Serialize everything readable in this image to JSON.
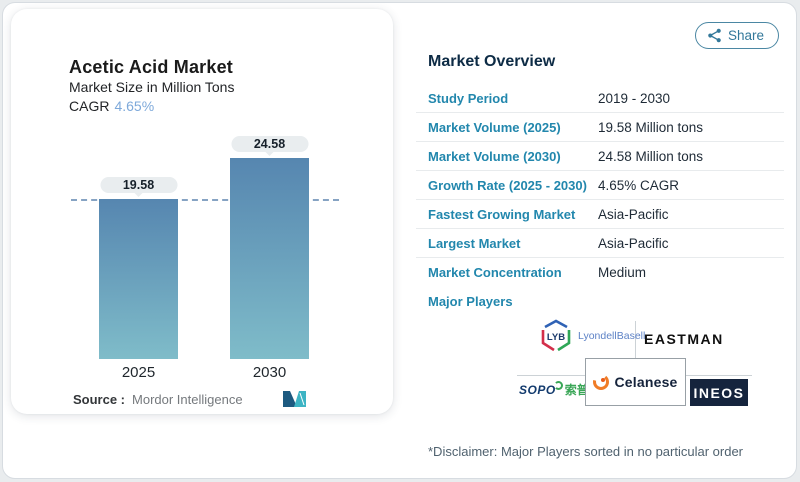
{
  "chart_card": {
    "title": "Acetic Acid Market",
    "subtitle": "Market Size in Million Tons",
    "cagr_label": "CAGR",
    "cagr_value": "4.65%",
    "source_label": "Source :",
    "source_value": "Mordor Intelligence"
  },
  "chart_data": {
    "type": "bar",
    "title": "Acetic Acid Market",
    "subtitle": "Market Size in Million Tons",
    "cagr": "4.65%",
    "categories": [
      "2025",
      "2030"
    ],
    "values": [
      19.58,
      24.58
    ],
    "data_labels": [
      "19.58",
      "24.58"
    ],
    "ylim": [
      0,
      26
    ],
    "reference_line_y": 19.58,
    "grid": false,
    "legend": "none",
    "bar_gradient": [
      "#5686b0",
      "#7fbcc9"
    ],
    "source": "Mordor Intelligence"
  },
  "share": {
    "label": "Share"
  },
  "overview": {
    "heading": "Market Overview",
    "rows": [
      {
        "label": "Study Period",
        "value": "2019 - 2030"
      },
      {
        "label": "Market Volume (2025)",
        "value": "19.58 Million tons"
      },
      {
        "label": "Market Volume (2030)",
        "value": "24.58 Million tons"
      },
      {
        "label": "Growth Rate (2025 - 2030)",
        "value": "4.65% CAGR"
      },
      {
        "label": "Fastest Growing Market",
        "value": "Asia-Pacific"
      },
      {
        "label": "Largest Market",
        "value": "Asia-Pacific"
      },
      {
        "label": "Market Concentration",
        "value": "Medium"
      }
    ],
    "major_players_label": "Major Players",
    "disclaimer": "*Disclaimer: Major Players sorted in no particular order"
  },
  "logos": {
    "lyb_abbr": "LYB",
    "lyb_name": "LyondellBasell",
    "eastman": "EASTMAN",
    "sopo_latin": "SOPO",
    "sopo_cn": "索普",
    "celanese": "Celanese",
    "ineos": "INEOS"
  },
  "colors": {
    "accent_teal": "#2287ad",
    "share_teal": "#33789a",
    "heading_navy": "#0d2b45",
    "cagr_blue": "#7ea9da",
    "bar_top": "#5686b0",
    "bar_bottom": "#7fbcc9",
    "badge_bg": "#e9edef",
    "dashed_line": "#86a3c3",
    "divider": "#e8ebed",
    "ineos_navy": "#15243d",
    "sopo_green": "#3aa657",
    "celanese_orange": "#f07c26",
    "lyb_blue": "#2f62b5",
    "lyb_red": "#d32f4a",
    "lyb_green": "#2fa757"
  }
}
